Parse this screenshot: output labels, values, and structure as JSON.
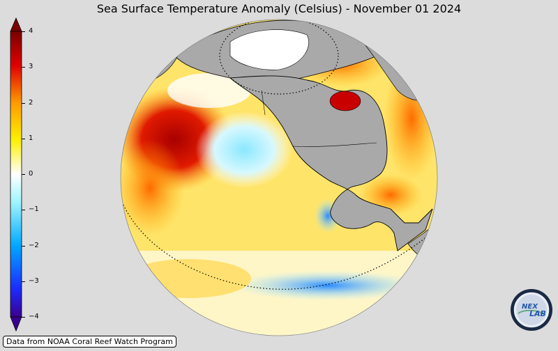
{
  "title": "Sea Surface Temperature Anomaly (Celsius) - November 01 2024",
  "source_note": "Data from NOAA Coral Reef Watch Program",
  "colorbar": {
    "ticks": [
      "4",
      "3",
      "2",
      "1",
      "0",
      "−1",
      "−2",
      "−3",
      "−4"
    ],
    "range": [
      -4,
      4
    ],
    "colors": [
      "#3a0080",
      "#0033ff",
      "#00ccff",
      "#ffffff",
      "#ffee00",
      "#ff8800",
      "#cc0000",
      "#800000"
    ]
  },
  "logo": {
    "text": "NEX LAB"
  },
  "map": {
    "projection": "orthographic",
    "land_color": "#a9a9a9",
    "ocean_colors": {
      "warm_strong": "#b40000",
      "warm": "#ff7a00",
      "mild": "#ffe24a",
      "neutral": "#ffffff",
      "cool": "#aef0ff",
      "cold": "#2a8cff"
    }
  }
}
